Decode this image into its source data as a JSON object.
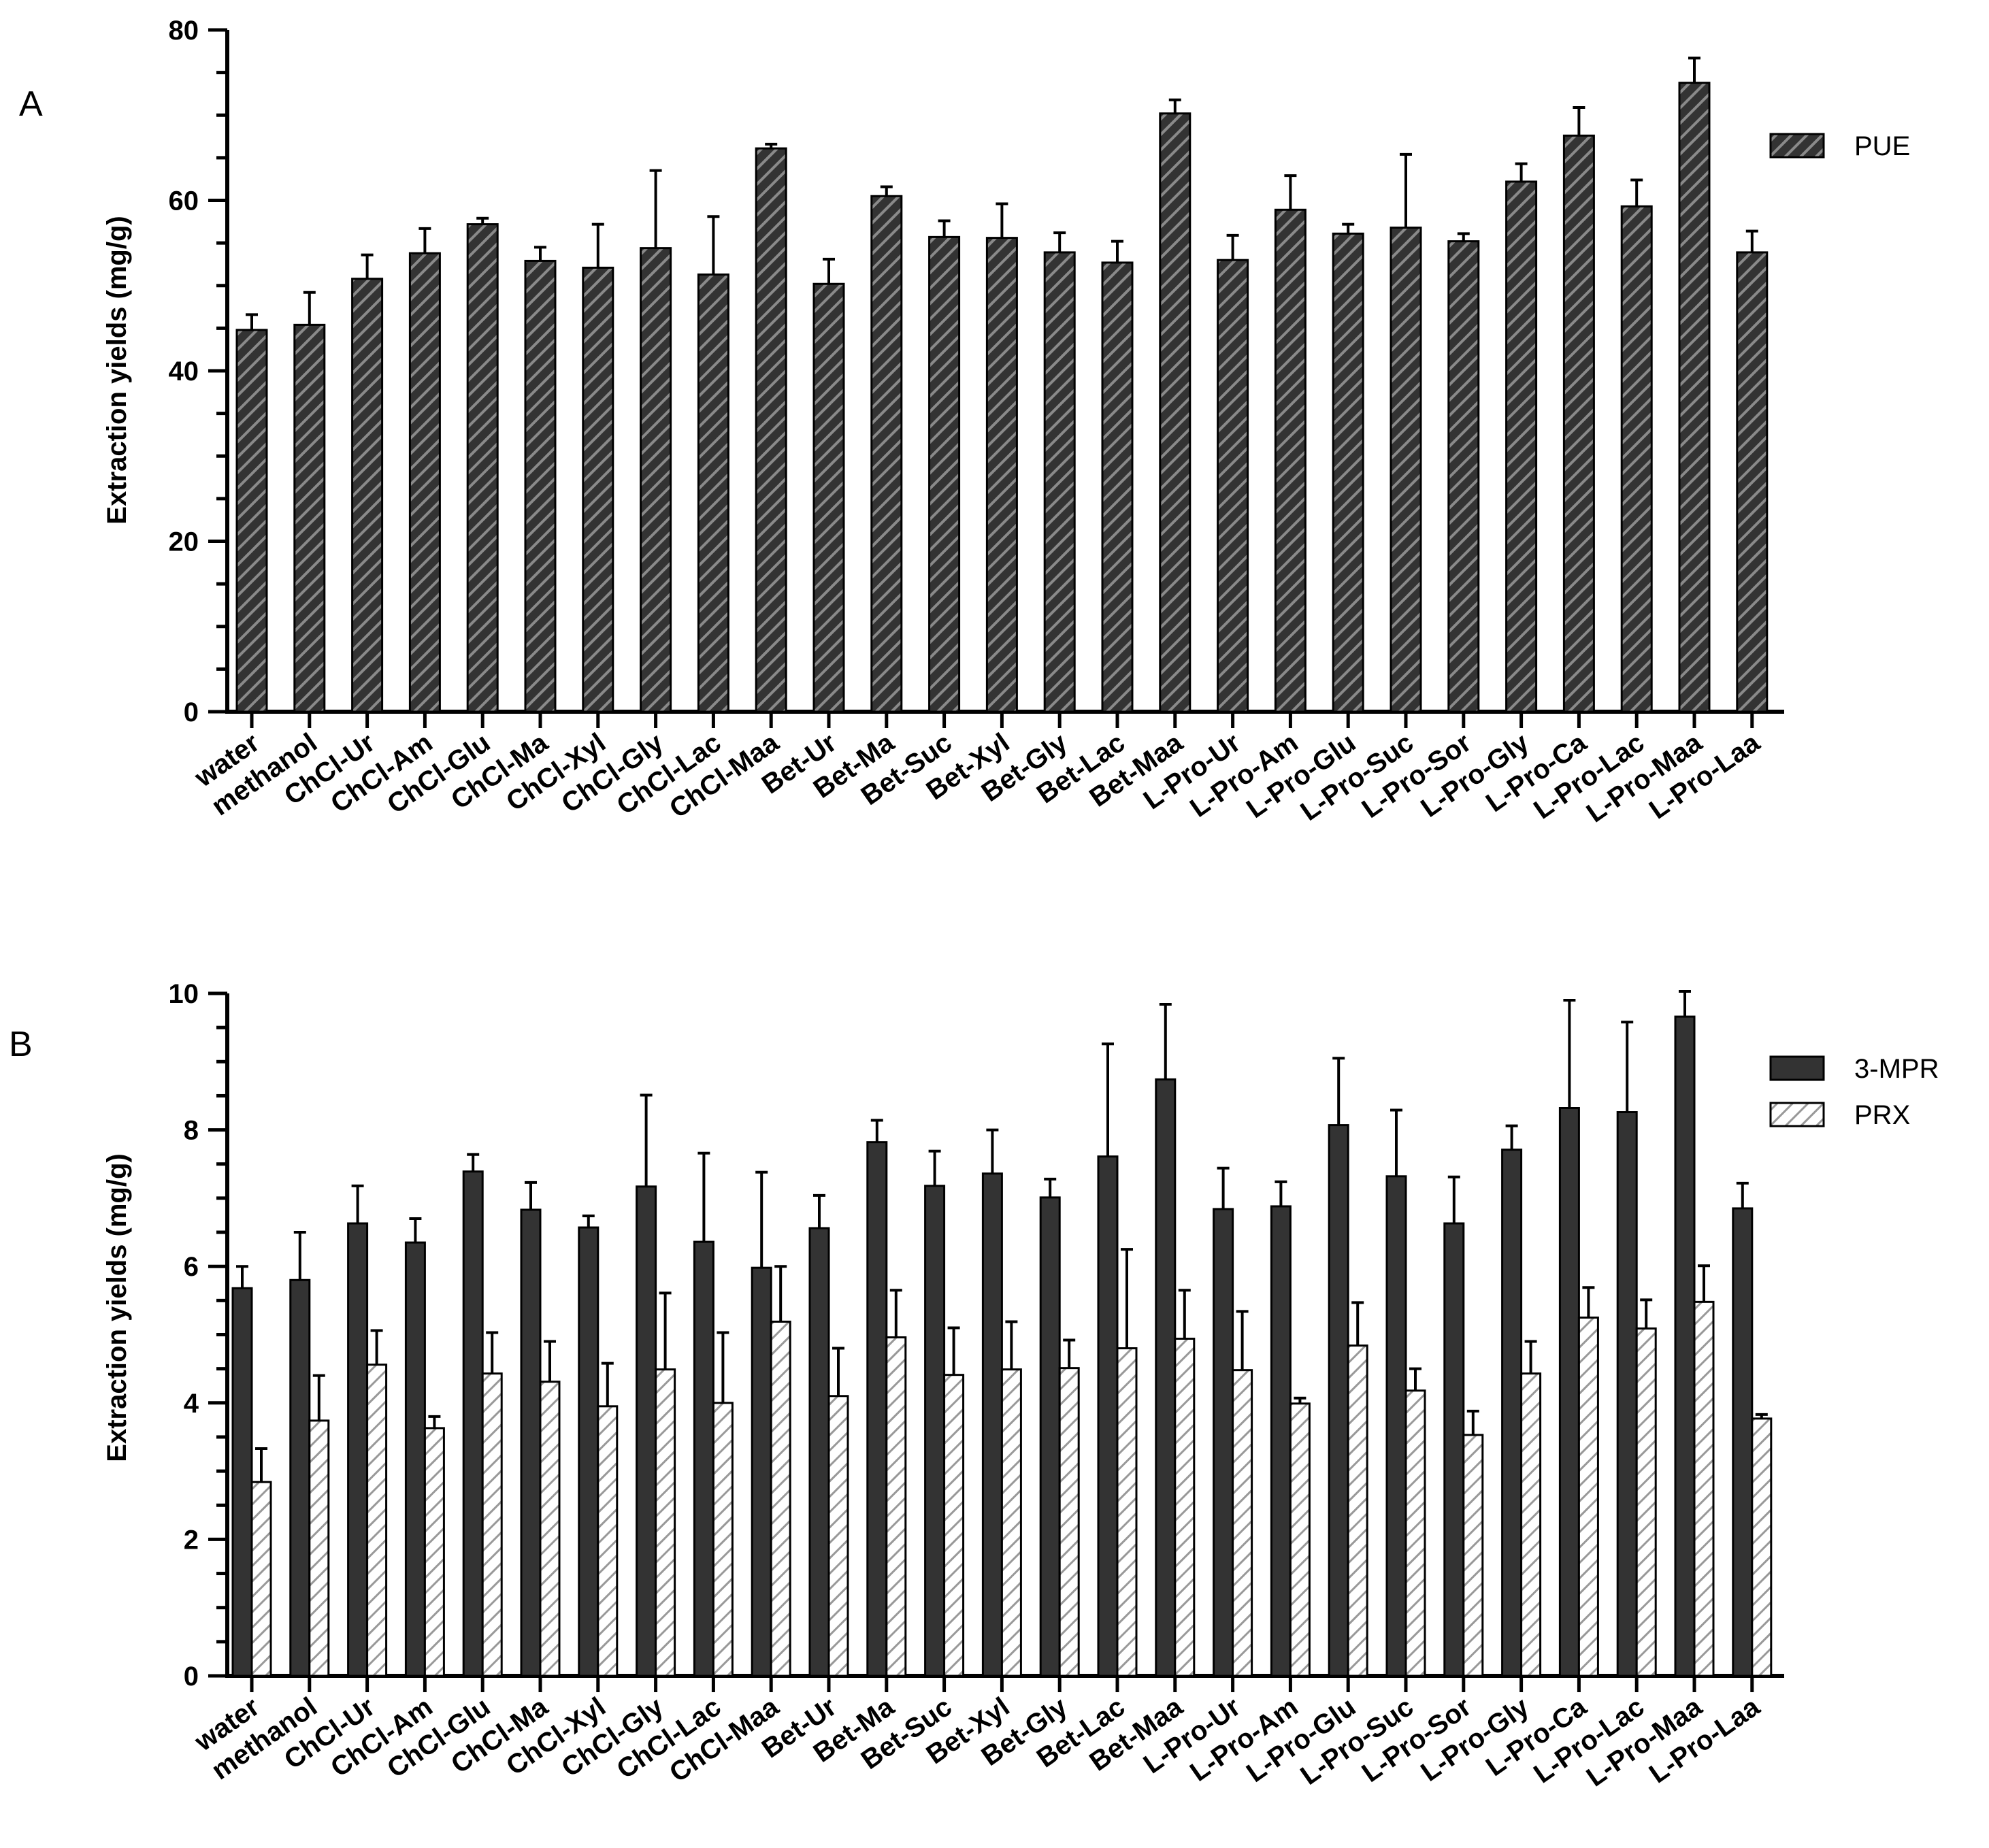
{
  "colors": {
    "dark_fill": "#333333",
    "light_fill": "#ffffff",
    "hatch_dark": "#8a8a8a",
    "hatch_light": "#999999",
    "axis": "#000000"
  },
  "chart_data": [
    {
      "panel": "A",
      "type": "bar",
      "ylabel": "Extraction yields (mg/g)",
      "ylim": [
        0,
        80
      ],
      "yticks": [
        "0",
        "20",
        "40",
        "60",
        "80"
      ],
      "grid": false,
      "legend_position": "top-right",
      "categories": [
        "water",
        "methanol",
        "ChCl-Ur",
        "ChCl-Am",
        "ChCl-Glu",
        "ChCl-Ma",
        "ChCl-Xyl",
        "ChCl-Gly",
        "ChCl-Lac",
        "ChCl-Maa",
        "Bet-Ur",
        "Bet-Ma",
        "Bet-Suc",
        "Bet-Xyl",
        "Bet-Gly",
        "Bet-Lac",
        "Bet-Maa",
        "L-Pro-Ur",
        "L-Pro-Am",
        "L-Pro-Glu",
        "L-Pro-Suc",
        "L-Pro-Sor",
        "L-Pro-Gly",
        "L-Pro-Ca",
        "L-Pro-Lac",
        "L-Pro-Maa",
        "L-Pro-Laa"
      ],
      "series": [
        {
          "name": "PUE",
          "style": "dark-hatched",
          "values": [
            44.8,
            45.4,
            50.8,
            53.8,
            57.2,
            52.9,
            52.1,
            54.4,
            51.3,
            66.1,
            50.2,
            60.5,
            55.7,
            55.6,
            53.9,
            52.7,
            70.2,
            53.0,
            58.9,
            56.1,
            56.8,
            55.2,
            62.2,
            67.6,
            59.3,
            73.8,
            53.9
          ],
          "errors": [
            1.8,
            3.8,
            2.8,
            2.9,
            0.7,
            1.6,
            5.1,
            9.1,
            6.8,
            0.5,
            2.9,
            1.1,
            1.9,
            4.0,
            2.3,
            2.5,
            1.6,
            2.9,
            4.0,
            1.1,
            8.6,
            0.9,
            2.1,
            3.3,
            3.1,
            2.9,
            2.5
          ]
        }
      ]
    },
    {
      "panel": "B",
      "type": "bar",
      "ylabel": "Extraction yields (mg/g)",
      "ylim": [
        0,
        10
      ],
      "yticks": [
        "0",
        "2",
        "4",
        "6",
        "8",
        "10"
      ],
      "grid": false,
      "legend_position": "top-right",
      "categories": [
        "water",
        "methanol",
        "ChCl-Ur",
        "ChCl-Am",
        "ChCl-Glu",
        "ChCl-Ma",
        "ChCl-Xyl",
        "ChCl-Gly",
        "ChCl-Lac",
        "ChCl-Maa",
        "Bet-Ur",
        "Bet-Ma",
        "Bet-Suc",
        "Bet-Xyl",
        "Bet-Gly",
        "Bet-Lac",
        "Bet-Maa",
        "L-Pro-Ur",
        "L-Pro-Am",
        "L-Pro-Glu",
        "L-Pro-Suc",
        "L-Pro-Sor",
        "L-Pro-Gly",
        "L-Pro-Ca",
        "L-Pro-Lac",
        "L-Pro-Maa",
        "L-Pro-Laa"
      ],
      "series": [
        {
          "name": "3-MPR",
          "style": "dark-solid",
          "values": [
            5.68,
            5.8,
            6.63,
            6.35,
            7.39,
            6.83,
            6.57,
            7.17,
            6.36,
            5.98,
            6.56,
            7.82,
            7.18,
            7.36,
            7.01,
            7.61,
            8.74,
            6.84,
            6.88,
            8.07,
            7.32,
            6.63,
            7.71,
            8.32,
            8.26,
            9.66,
            6.85
          ],
          "errors": [
            0.32,
            0.7,
            0.55,
            0.35,
            0.25,
            0.4,
            0.17,
            1.34,
            1.3,
            1.4,
            0.48,
            0.32,
            0.51,
            0.64,
            0.27,
            1.65,
            1.1,
            0.6,
            0.36,
            0.98,
            0.97,
            0.68,
            0.35,
            1.58,
            1.32,
            0.55,
            0.37
          ]
        },
        {
          "name": "PRX",
          "style": "white-hatched",
          "values": [
            2.84,
            3.74,
            4.56,
            3.63,
            4.43,
            4.31,
            3.95,
            4.49,
            4.0,
            5.19,
            4.1,
            4.96,
            4.41,
            4.49,
            4.51,
            4.8,
            4.94,
            4.48,
            3.99,
            4.84,
            4.18,
            3.53,
            4.43,
            5.25,
            5.09,
            5.48,
            3.77
          ],
          "errors": [
            0.49,
            0.66,
            0.5,
            0.17,
            0.6,
            0.59,
            0.63,
            1.12,
            1.03,
            0.81,
            0.7,
            0.69,
            0.69,
            0.7,
            0.41,
            1.45,
            0.71,
            0.86,
            0.08,
            0.63,
            0.32,
            0.35,
            0.47,
            0.44,
            0.42,
            0.53,
            0.06
          ]
        }
      ]
    }
  ]
}
